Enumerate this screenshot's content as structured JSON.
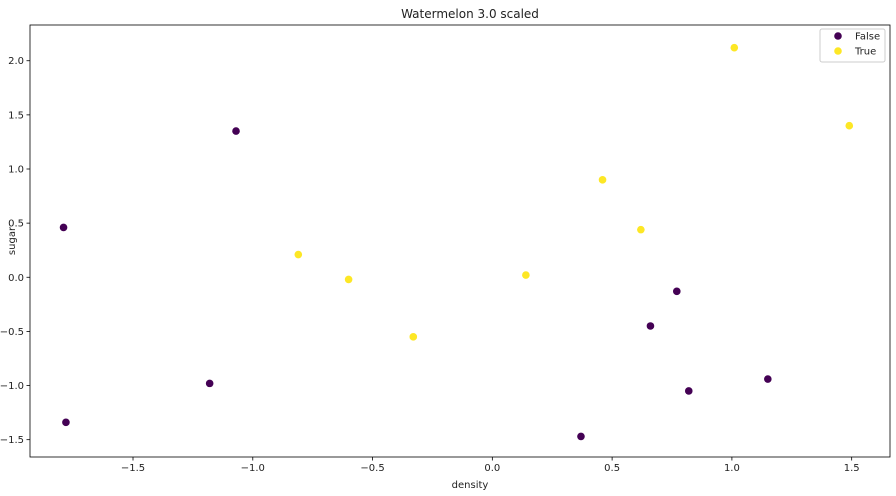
{
  "chart_data": {
    "type": "scatter",
    "title": "Watermelon 3.0 scaled",
    "xlabel": "density",
    "ylabel": "sugar",
    "xlim": [
      -1.93,
      1.66
    ],
    "ylim": [
      -1.66,
      2.33
    ],
    "xticks": [
      -1.5,
      -1.0,
      -0.5,
      0.0,
      0.5,
      1.0,
      1.5
    ],
    "xtick_labels": [
      "−1.5",
      "−1.0",
      "−0.5",
      "0.0",
      "0.5",
      "1.0",
      "1.5"
    ],
    "yticks": [
      -1.5,
      -1.0,
      -0.5,
      0.0,
      0.5,
      1.0,
      1.5,
      2.0
    ],
    "ytick_labels": [
      "−1.5",
      "−1.0",
      "−0.5",
      "0.0",
      "0.5",
      "1.0",
      "1.5",
      "2.0"
    ],
    "grid": false,
    "legend_position": "top-right",
    "series": [
      {
        "name": "False",
        "color": "#440154",
        "x": [
          -1.79,
          -1.07,
          -1.78,
          -1.18,
          0.37,
          0.66,
          0.77,
          0.82,
          1.15
        ],
        "y": [
          0.46,
          1.35,
          -1.34,
          -0.98,
          -1.47,
          -0.45,
          -0.13,
          -1.05,
          -0.94
        ]
      },
      {
        "name": "True",
        "color": "#fde725",
        "x": [
          -0.81,
          -0.6,
          -0.33,
          0.14,
          0.46,
          0.62,
          1.01,
          1.49
        ],
        "y": [
          0.21,
          -0.02,
          -0.55,
          0.02,
          0.9,
          0.44,
          2.12,
          1.4
        ]
      }
    ]
  }
}
